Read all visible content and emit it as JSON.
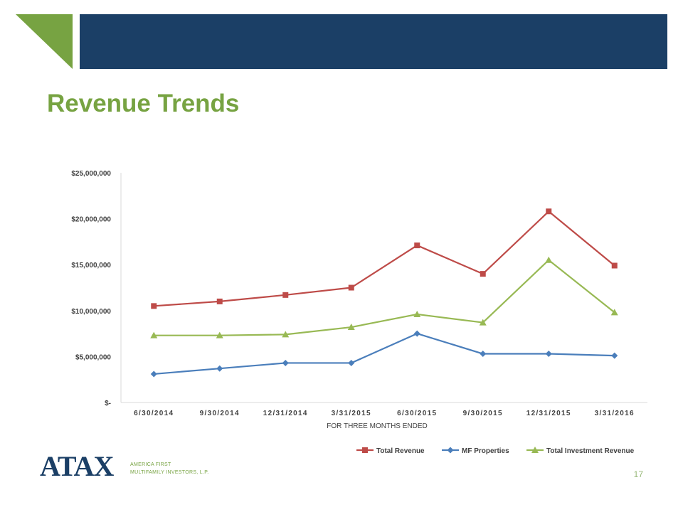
{
  "slide": {
    "title": "Revenue Trends",
    "page_number": "17",
    "header_bar_color": "#1b3f66",
    "accent_color": "#77a342"
  },
  "logo": {
    "mark": "ATAX",
    "line1": "AMERICA FIRST",
    "line2": "MULTIFAMILY INVESTORS, L.P."
  },
  "chart_data": {
    "type": "line",
    "categories": [
      "6/30/2014",
      "9/30/2014",
      "12/31/2014",
      "3/31/2015",
      "6/30/2015",
      "9/30/2015",
      "12/31/2015",
      "3/31/2016"
    ],
    "xlabel": "FOR THREE MONTHS ENDED",
    "ylabel": "",
    "ylim": [
      0,
      25000000
    ],
    "yticks": [
      {
        "value": 0,
        "label": "$-"
      },
      {
        "value": 5000000,
        "label": "$5,000,000"
      },
      {
        "value": 10000000,
        "label": "$10,000,000"
      },
      {
        "value": 15000000,
        "label": "$15,000,000"
      },
      {
        "value": 20000000,
        "label": "$20,000,000"
      },
      {
        "value": 25000000,
        "label": "$25,000,000"
      }
    ],
    "grid": false,
    "legend_position": "bottom-right",
    "series": [
      {
        "name": "Total Revenue",
        "color": "#be4b48",
        "marker": "square",
        "values": [
          10500000,
          11000000,
          11700000,
          12500000,
          17100000,
          14000000,
          20800000,
          14900000
        ]
      },
      {
        "name": "MF Properties",
        "color": "#4a7ebb",
        "marker": "diamond",
        "values": [
          3100000,
          3700000,
          4300000,
          4300000,
          7500000,
          5300000,
          5300000,
          5100000
        ]
      },
      {
        "name": "Total Investment Revenue",
        "color": "#98b954",
        "marker": "triangle",
        "values": [
          7300000,
          7300000,
          7400000,
          8200000,
          9600000,
          8700000,
          15500000,
          9800000
        ]
      }
    ]
  }
}
